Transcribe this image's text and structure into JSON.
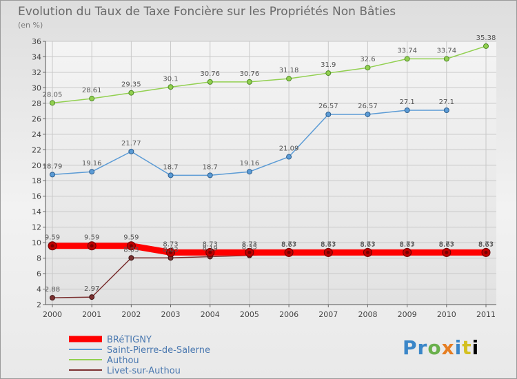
{
  "logo": {
    "letters": [
      "P",
      "r",
      "o",
      "x",
      "i",
      "t",
      "i"
    ]
  },
  "chart_data": {
    "type": "line",
    "title": "Evolution du Taux de Taxe Foncière sur les Propriétés Non Bâties",
    "subtitle": "(en %)",
    "xlabel": "",
    "ylabel": "",
    "x": [
      "2000",
      "2001",
      "2002",
      "2003",
      "2004",
      "2005",
      "2006",
      "2007",
      "2008",
      "2009",
      "2010",
      "2011"
    ],
    "ylim": [
      2,
      36
    ],
    "yticks": [
      2,
      4,
      6,
      8,
      10,
      12,
      14,
      16,
      18,
      20,
      22,
      24,
      26,
      28,
      30,
      32,
      34,
      36
    ],
    "grid": true,
    "legend_position": "bottom-left",
    "series": [
      {
        "name": "BRéTIGNY",
        "color": "#ff0000",
        "values": [
          9.59,
          9.59,
          9.59,
          8.73,
          8.73,
          8.73,
          8.73,
          8.73,
          8.73,
          8.73,
          8.73,
          8.73
        ],
        "labels": [
          "9.59",
          "9.59",
          "9.59",
          "8.73",
          "8.73",
          "8.73",
          "8.73",
          "8.73",
          "8.73",
          "8.73",
          "8.73",
          "8.73"
        ]
      },
      {
        "name": "Saint-Pierre-de-Salerne",
        "color": "#5b9bd5",
        "values": [
          18.79,
          19.16,
          21.77,
          18.7,
          18.7,
          19.16,
          21.09,
          26.57,
          26.57,
          27.1,
          27.1,
          null
        ],
        "labels": [
          "18.79",
          "19.16",
          "21.77",
          "18.7",
          "18.7",
          "19.16",
          "21.09",
          "26.57",
          "26.57",
          "27.1",
          "27.1",
          null
        ]
      },
      {
        "name": "Authou",
        "color": "#92d050",
        "values": [
          28.05,
          28.61,
          29.35,
          30.1,
          30.76,
          30.76,
          31.18,
          31.9,
          32.6,
          33.74,
          33.74,
          35.38
        ],
        "labels": [
          "28.05",
          "28.61",
          "29.35",
          "30.1",
          "30.76",
          "30.76",
          "31.18",
          "31.9",
          "32.6",
          "33.74",
          "33.74",
          "35.38"
        ]
      },
      {
        "name": "Livet-sur-Authou",
        "color": "#7b3030",
        "values": [
          2.88,
          2.97,
          8.03,
          8.03,
          8.19,
          8.35,
          8.67,
          8.67,
          8.67,
          8.67,
          8.67,
          8.67
        ],
        "labels": [
          "2.88",
          "2.97",
          "8.03",
          "8.03",
          "8.19",
          "8.35",
          "8.67",
          "8.67",
          "8.67",
          "8.67",
          "8.67",
          "8.67"
        ]
      }
    ]
  }
}
